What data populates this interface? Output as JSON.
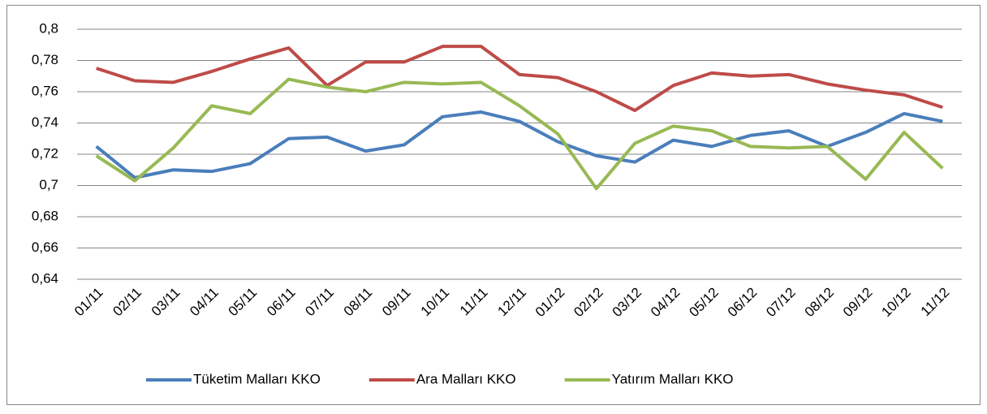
{
  "chart_data": {
    "type": "line",
    "categories": [
      "01/11",
      "02/11",
      "03/11",
      "04/11",
      "05/11",
      "06/11",
      "07/11",
      "08/11",
      "09/11",
      "10/11",
      "11/11",
      "12/11",
      "01/12",
      "02/12",
      "03/12",
      "04/12",
      "05/12",
      "06/12",
      "07/12",
      "08/12",
      "09/12",
      "10/12",
      "11/12"
    ],
    "series": [
      {
        "name": "Tüketim Malları KKO",
        "color": "#4a7ebb",
        "values": [
          0.725,
          0.705,
          0.71,
          0.709,
          0.714,
          0.73,
          0.731,
          0.722,
          0.726,
          0.744,
          0.747,
          0.741,
          0.728,
          0.719,
          0.715,
          0.729,
          0.725,
          0.732,
          0.735,
          0.725,
          0.734,
          0.746,
          0.741
        ]
      },
      {
        "name": "Ara Malları KKO",
        "color": "#be4b48",
        "values": [
          0.775,
          0.767,
          0.766,
          0.773,
          0.781,
          0.788,
          0.764,
          0.779,
          0.779,
          0.789,
          0.789,
          0.771,
          0.769,
          0.76,
          0.748,
          0.764,
          0.772,
          0.77,
          0.771,
          0.765,
          0.761,
          0.758,
          0.75
        ]
      },
      {
        "name": "Yatırım Malları KKO",
        "color": "#98b954",
        "values": [
          0.719,
          0.703,
          0.724,
          0.751,
          0.746,
          0.768,
          0.763,
          0.76,
          0.766,
          0.765,
          0.766,
          0.751,
          0.733,
          0.698,
          0.727,
          0.738,
          0.735,
          0.725,
          0.724,
          0.725,
          0.704,
          0.734,
          0.711
        ]
      }
    ],
    "ylim": [
      0.64,
      0.8
    ],
    "yticks": [
      {
        "value": 0.64,
        "label": "0,64"
      },
      {
        "value": 0.66,
        "label": "0,66"
      },
      {
        "value": 0.68,
        "label": "0,68"
      },
      {
        "value": 0.7,
        "label": "0,7"
      },
      {
        "value": 0.72,
        "label": "0,72"
      },
      {
        "value": 0.74,
        "label": "0,74"
      },
      {
        "value": 0.76,
        "label": "0,76"
      },
      {
        "value": 0.78,
        "label": "0,78"
      },
      {
        "value": 0.8,
        "label": "0,8"
      }
    ],
    "grid": true,
    "legend": "bottom"
  }
}
